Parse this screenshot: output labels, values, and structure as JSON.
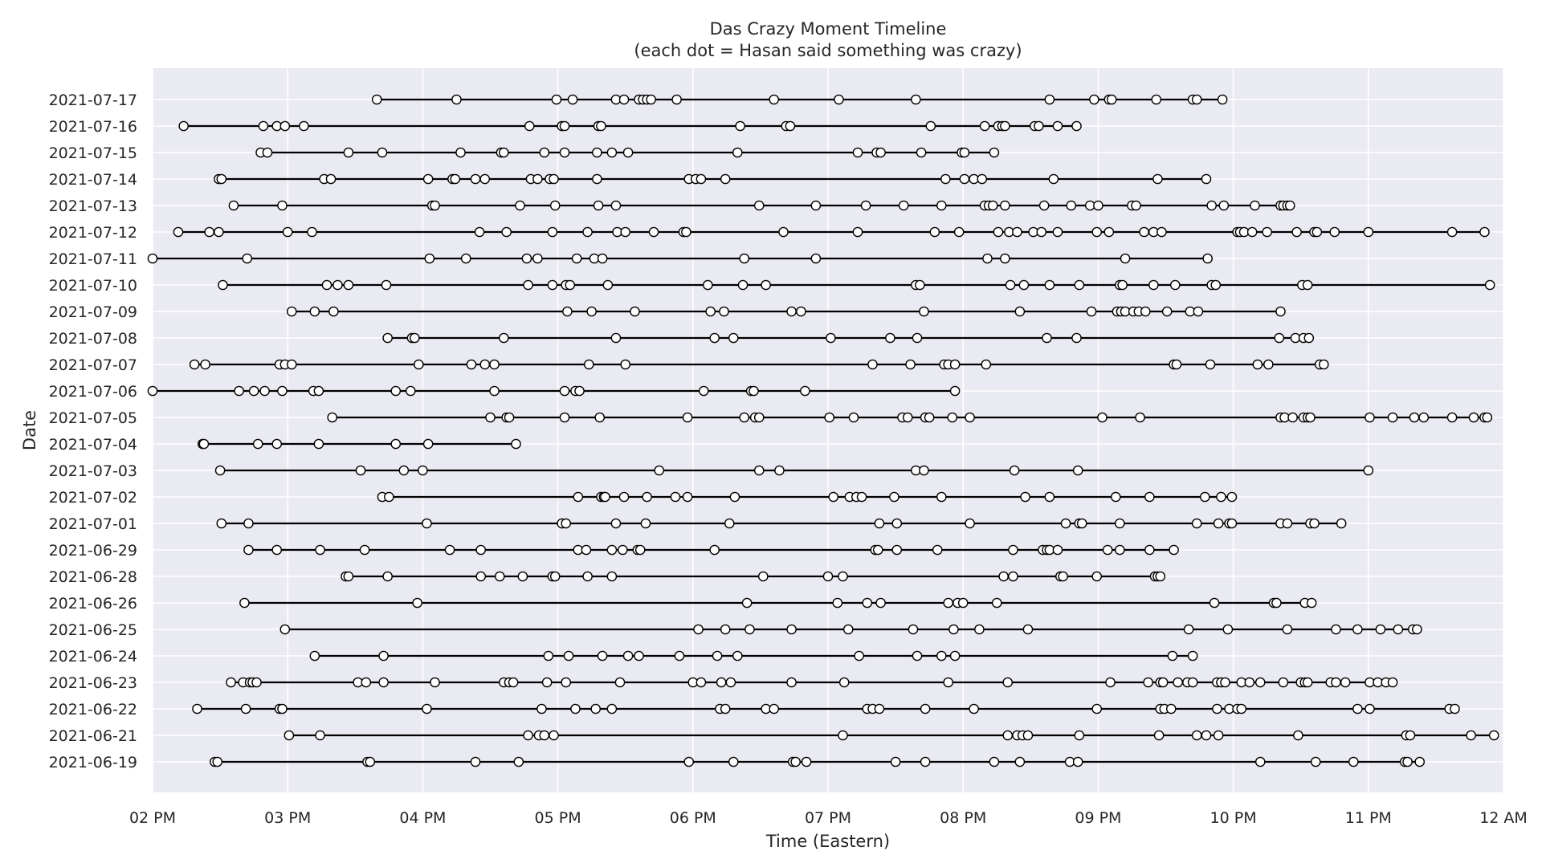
{
  "chart_data": {
    "type": "scatter",
    "title": "Das Crazy Moment Timeline",
    "subtitle": "(each dot = Hasan said something was crazy)",
    "xlabel": "Time (Eastern)",
    "ylabel": "Date",
    "x_axis": {
      "unit": "hours since midnight (Eastern)",
      "range": [
        14,
        24
      ],
      "ticks": [
        14,
        15,
        16,
        17,
        18,
        19,
        20,
        21,
        22,
        23,
        24
      ],
      "tick_labels": [
        "02 PM",
        "03 PM",
        "04 PM",
        "05 PM",
        "06 PM",
        "07 PM",
        "08 PM",
        "09 PM",
        "10 PM",
        "11 PM",
        "12 AM"
      ]
    },
    "grid": true,
    "style": {
      "background": "#eaeaf2",
      "grid_color": "#ffffff",
      "line_color": "#000000",
      "marker_fill": "#ffffff",
      "marker_edge": "#000000"
    },
    "series": [
      {
        "date": "2021-07-17",
        "times": [
          15.66,
          16.25,
          16.99,
          17.11,
          17.43,
          17.49,
          17.6,
          17.63,
          17.66,
          17.69,
          17.88,
          18.6,
          19.08,
          19.65,
          20.64,
          20.97,
          21.08,
          21.1,
          21.43,
          21.7,
          21.73,
          21.92
        ]
      },
      {
        "date": "2021-07-16",
        "times": [
          14.23,
          14.82,
          14.92,
          14.98,
          15.12,
          16.79,
          17.03,
          17.05,
          17.3,
          17.32,
          18.35,
          18.69,
          18.72,
          19.76,
          20.16,
          20.26,
          20.29,
          20.31,
          20.53,
          20.56,
          20.7,
          20.84
        ]
      },
      {
        "date": "2021-07-15",
        "times": [
          14.8,
          14.85,
          15.45,
          15.7,
          16.28,
          16.58,
          16.6,
          16.9,
          17.05,
          17.29,
          17.4,
          17.52,
          18.33,
          19.22,
          19.36,
          19.39,
          19.69,
          19.99,
          20.01,
          20.23
        ]
      },
      {
        "date": "2021-07-14",
        "times": [
          14.49,
          14.51,
          15.27,
          15.32,
          16.04,
          16.22,
          16.24,
          16.39,
          16.46,
          16.8,
          16.85,
          16.94,
          16.97,
          17.29,
          17.97,
          18.02,
          18.06,
          18.24,
          19.87,
          20.01,
          20.08,
          20.14,
          20.67,
          21.44,
          21.8
        ]
      },
      {
        "date": "2021-07-13",
        "times": [
          14.6,
          14.96,
          16.07,
          16.09,
          16.72,
          16.98,
          17.3,
          17.43,
          18.49,
          18.91,
          19.28,
          19.56,
          19.84,
          20.16,
          20.19,
          20.22,
          20.31,
          20.6,
          20.8,
          20.94,
          21.0,
          21.25,
          21.28,
          21.84,
          21.93,
          22.16,
          22.35,
          22.37,
          22.4,
          22.42
        ]
      },
      {
        "date": "2021-07-12",
        "times": [
          14.19,
          14.42,
          14.49,
          15.0,
          15.18,
          16.42,
          16.62,
          16.96,
          17.22,
          17.44,
          17.5,
          17.71,
          17.93,
          17.95,
          18.67,
          19.22,
          19.79,
          19.97,
          20.26,
          20.34,
          20.4,
          20.52,
          20.58,
          20.7,
          20.99,
          21.08,
          21.34,
          21.41,
          21.47,
          22.03,
          22.05,
          22.08,
          22.14,
          22.25,
          22.47,
          22.6,
          22.62,
          22.75,
          23.0,
          23.62,
          23.86
        ]
      },
      {
        "date": "2021-07-11",
        "times": [
          14.0,
          14.7,
          16.05,
          16.32,
          16.77,
          16.85,
          17.14,
          17.27,
          17.33,
          18.38,
          18.91,
          20.18,
          20.31,
          21.2,
          21.81
        ]
      },
      {
        "date": "2021-07-10",
        "times": [
          14.52,
          15.29,
          15.37,
          15.45,
          15.73,
          16.78,
          16.96,
          17.06,
          17.09,
          17.37,
          18.11,
          18.37,
          18.54,
          19.65,
          19.68,
          20.35,
          20.45,
          20.64,
          20.86,
          21.16,
          21.18,
          21.41,
          21.57,
          21.84,
          21.87,
          22.51,
          22.55,
          23.9
        ]
      },
      {
        "date": "2021-07-09",
        "times": [
          15.03,
          15.2,
          15.34,
          17.07,
          17.25,
          17.57,
          18.13,
          18.23,
          18.73,
          18.8,
          19.71,
          20.42,
          20.95,
          21.14,
          21.17,
          21.2,
          21.26,
          21.3,
          21.35,
          21.51,
          21.68,
          21.74,
          22.35
        ]
      },
      {
        "date": "2021-07-08",
        "times": [
          15.74,
          15.92,
          15.94,
          16.6,
          17.43,
          18.16,
          18.3,
          19.02,
          19.46,
          19.66,
          20.62,
          20.84,
          22.34,
          22.46,
          22.52,
          22.56
        ]
      },
      {
        "date": "2021-07-07",
        "times": [
          14.31,
          14.39,
          14.94,
          14.98,
          15.03,
          15.97,
          16.36,
          16.46,
          16.53,
          17.23,
          17.5,
          19.33,
          19.61,
          19.86,
          19.89,
          19.94,
          20.17,
          21.56,
          21.58,
          21.83,
          22.18,
          22.26,
          22.64,
          22.67
        ]
      },
      {
        "date": "2021-07-06",
        "times": [
          14.0,
          14.64,
          14.75,
          14.83,
          14.96,
          15.19,
          15.23,
          15.8,
          15.91,
          16.53,
          17.05,
          17.13,
          17.16,
          18.08,
          18.43,
          18.45,
          18.83,
          19.94
        ]
      },
      {
        "date": "2021-07-05",
        "times": [
          15.33,
          16.5,
          16.62,
          16.64,
          17.05,
          17.31,
          17.96,
          18.38,
          18.46,
          18.49,
          19.01,
          19.19,
          19.55,
          19.59,
          19.72,
          19.75,
          19.92,
          20.05,
          21.03,
          21.31,
          22.35,
          22.38,
          22.44,
          22.52,
          22.55,
          22.57,
          23.01,
          23.18,
          23.34,
          23.41,
          23.62,
          23.78,
          23.86,
          23.88
        ]
      },
      {
        "date": "2021-07-04",
        "times": [
          14.37,
          14.38,
          14.78,
          14.92,
          15.23,
          15.8,
          16.04,
          16.69
        ]
      },
      {
        "date": "2021-07-03",
        "times": [
          14.5,
          15.54,
          15.86,
          16.0,
          17.75,
          18.49,
          18.64,
          19.65,
          19.71,
          20.38,
          20.85,
          23.0
        ]
      },
      {
        "date": "2021-07-02",
        "times": [
          15.7,
          15.75,
          17.15,
          17.32,
          17.34,
          17.35,
          17.49,
          17.66,
          17.87,
          17.96,
          18.31,
          19.04,
          19.16,
          19.21,
          19.25,
          19.49,
          19.84,
          20.46,
          20.64,
          21.13,
          21.38,
          21.79,
          21.91,
          21.99
        ]
      },
      {
        "date": "2021-07-01",
        "times": [
          14.51,
          14.71,
          16.03,
          17.03,
          17.06,
          17.43,
          17.65,
          18.27,
          19.38,
          19.51,
          20.05,
          20.76,
          20.86,
          20.88,
          21.16,
          21.73,
          21.89,
          21.97,
          21.99,
          22.35,
          22.4,
          22.57,
          22.6,
          22.8
        ]
      },
      {
        "date": "2021-06-29",
        "times": [
          14.71,
          14.92,
          15.24,
          15.57,
          16.2,
          16.43,
          17.15,
          17.21,
          17.4,
          17.48,
          17.59,
          17.61,
          18.16,
          19.35,
          19.37,
          19.51,
          19.81,
          20.37,
          20.59,
          20.62,
          20.64,
          20.7,
          21.07,
          21.16,
          21.38,
          21.56
        ]
      },
      {
        "date": "2021-06-28",
        "times": [
          15.43,
          15.45,
          15.74,
          16.43,
          16.57,
          16.74,
          16.96,
          16.98,
          17.22,
          17.4,
          18.52,
          19.0,
          19.11,
          20.3,
          20.37,
          20.72,
          20.74,
          20.99,
          21.42,
          21.44,
          21.46
        ]
      },
      {
        "date": "2021-06-26",
        "times": [
          14.68,
          15.96,
          18.4,
          19.07,
          19.29,
          19.39,
          19.89,
          19.96,
          20.0,
          20.25,
          21.86,
          22.3,
          22.32,
          22.53,
          22.58
        ]
      },
      {
        "date": "2021-06-25",
        "times": [
          14.98,
          18.04,
          18.24,
          18.42,
          18.73,
          19.15,
          19.63,
          19.93,
          20.12,
          20.48,
          21.67,
          21.96,
          22.4,
          22.76,
          22.92,
          23.09,
          23.22,
          23.33,
          23.36
        ]
      },
      {
        "date": "2021-06-24",
        "times": [
          15.2,
          15.71,
          16.93,
          17.08,
          17.33,
          17.52,
          17.6,
          17.9,
          18.18,
          18.33,
          19.23,
          19.66,
          19.84,
          19.94,
          21.55,
          21.7
        ]
      },
      {
        "date": "2021-06-23",
        "times": [
          14.58,
          14.67,
          14.72,
          14.74,
          14.77,
          15.52,
          15.58,
          15.71,
          16.09,
          16.6,
          16.64,
          16.67,
          16.92,
          17.06,
          17.46,
          18.0,
          18.06,
          18.21,
          18.28,
          18.73,
          19.12,
          19.89,
          20.33,
          21.09,
          21.37,
          21.46,
          21.48,
          21.59,
          21.66,
          21.7,
          21.88,
          21.91,
          21.94,
          22.06,
          22.12,
          22.2,
          22.37,
          22.5,
          22.53,
          22.55,
          22.72,
          22.76,
          22.83,
          23.01,
          23.07,
          23.13,
          23.18
        ]
      },
      {
        "date": "2021-06-22",
        "times": [
          14.33,
          14.69,
          14.94,
          14.96,
          16.03,
          16.88,
          17.13,
          17.28,
          17.4,
          18.2,
          18.24,
          18.54,
          18.6,
          19.29,
          19.33,
          19.38,
          19.72,
          20.08,
          20.99,
          21.46,
          21.49,
          21.54,
          21.88,
          21.97,
          22.03,
          22.06,
          22.92,
          23.01,
          23.6,
          23.64
        ]
      },
      {
        "date": "2021-06-21",
        "times": [
          15.01,
          15.24,
          16.78,
          16.86,
          16.9,
          16.97,
          19.11,
          20.33,
          20.4,
          20.44,
          20.48,
          20.86,
          21.45,
          21.73,
          21.8,
          21.89,
          22.48,
          23.28,
          23.31,
          23.76,
          23.93
        ]
      },
      {
        "date": "2021-06-19",
        "times": [
          14.46,
          14.48,
          15.59,
          15.61,
          16.39,
          16.71,
          17.97,
          18.3,
          18.74,
          18.76,
          18.84,
          19.5,
          19.72,
          20.23,
          20.42,
          20.79,
          20.85,
          22.2,
          22.61,
          22.89,
          23.27,
          23.29,
          23.38
        ]
      }
    ]
  }
}
